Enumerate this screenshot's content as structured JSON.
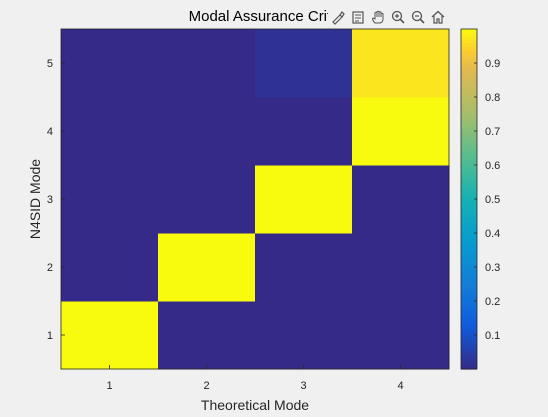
{
  "toolbar": {
    "icons": [
      "brush-icon",
      "datatips-icon",
      "pan-hand-icon",
      "zoom-in-icon",
      "zoom-out-icon",
      "home-icon"
    ]
  },
  "chart_data": {
    "type": "heatmap",
    "title": "Modal Assurance Criteric",
    "xlabel": "Theoretical Mode",
    "ylabel": "N4SID Mode",
    "x": [
      1,
      2,
      3,
      4
    ],
    "y": [
      1,
      2,
      3,
      4,
      5
    ],
    "values": [
      [
        1.0,
        0.0,
        0.0,
        0.0
      ],
      [
        0.0,
        1.0,
        0.0,
        0.0
      ],
      [
        0.0,
        0.0,
        1.0,
        0.0
      ],
      [
        0.0,
        0.0,
        0.0,
        1.0
      ],
      [
        0.0,
        0.0,
        0.02,
        0.97
      ]
    ],
    "colormap": "parula",
    "clim": [
      0.0,
      1.0
    ],
    "colorbar_ticks": [
      "0.1",
      "0.2",
      "0.3",
      "0.4",
      "0.5",
      "0.6",
      "0.7",
      "0.8",
      "0.9"
    ],
    "grid": false,
    "legend": "colorbar-right"
  }
}
